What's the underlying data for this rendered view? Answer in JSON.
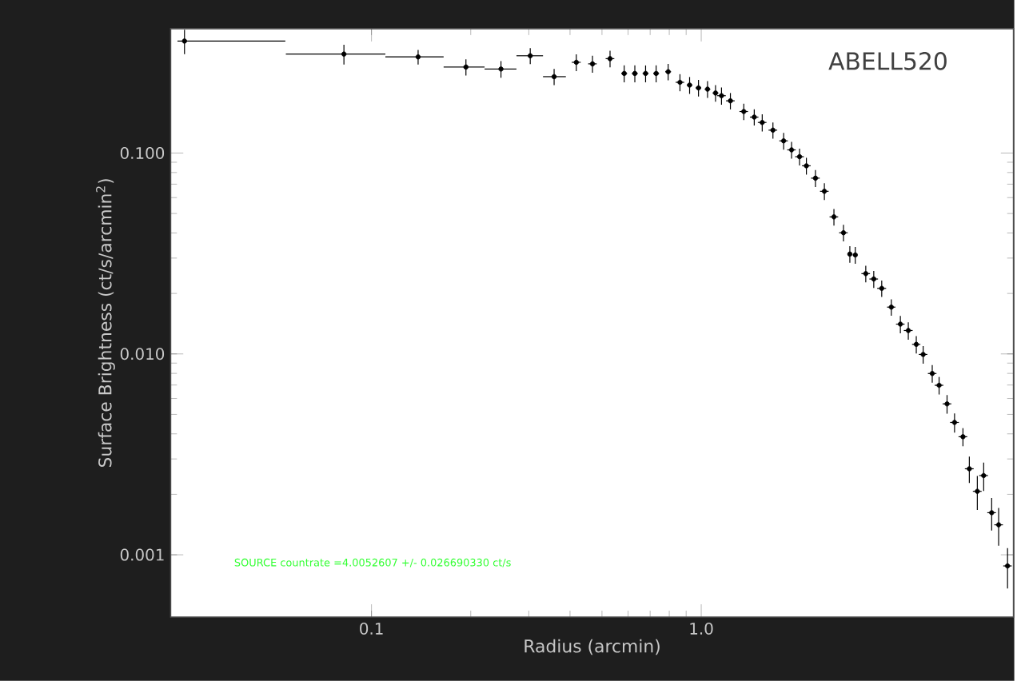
{
  "chart_data": {
    "type": "scatter",
    "log": "xy",
    "marker": "circle",
    "color": "#000000",
    "xlabel": "Radius (arcmin)",
    "ylabel": "Surface Brightness (ct/s/arcmin$^{2}$)",
    "xlim": [
      0.0246,
      8.85
    ],
    "ylim": [
      0.00049,
      0.416
    ],
    "xticks": [
      0.1,
      {
        "value": 1,
        "label": "1.0"
      }
    ],
    "yticks": [
      0.001,
      {
        "value": 0.01,
        "label": "0.010"
      },
      {
        "value": 0.1,
        "label": "0.100"
      }
    ],
    "annotations": [
      "ABELL520",
      "SOURCE countrate =4.0052607 +/- 0.026690330 ct/s"
    ],
    "x": [
      0.0271,
      0.0825,
      0.1385,
      0.1934,
      0.247,
      0.303,
      0.358,
      0.418,
      0.468,
      0.529,
      0.584,
      0.629,
      0.678,
      0.73,
      0.794,
      0.862,
      0.922,
      0.981,
      1.045,
      1.105,
      1.152,
      1.226,
      1.346,
      1.448,
      1.531,
      1.65,
      1.778,
      1.879,
      1.987,
      2.084,
      2.22,
      2.363,
      2.526,
      2.7,
      2.823,
      2.932,
      3.155,
      3.336,
      3.527,
      3.771,
      4.017,
      4.246,
      4.489,
      4.71,
      5.018,
      5.264,
      5.565,
      5.864,
      6.219,
      6.502,
      6.875,
      7.187,
      7.6,
      7.98,
      8.49
    ],
    "values": [
      0.361,
      0.311,
      0.301,
      0.268,
      0.262,
      0.305,
      0.24,
      0.283,
      0.278,
      0.295,
      0.249,
      0.249,
      0.249,
      0.249,
      0.254,
      0.225,
      0.218,
      0.211,
      0.208,
      0.199,
      0.193,
      0.182,
      0.161,
      0.151,
      0.142,
      0.13,
      0.115,
      0.1037,
      0.0959,
      0.0864,
      0.075,
      0.0645,
      0.0481,
      0.0401,
      0.0314,
      0.0311,
      0.0251,
      0.0236,
      0.0212,
      0.0171,
      0.01407,
      0.01308,
      0.01116,
      0.00994,
      0.00799,
      0.00698,
      0.00564,
      0.00456,
      0.00387,
      0.00268,
      0.00207,
      0.00248,
      0.00162,
      0.00141,
      0.00088
    ],
    "xerrors": [
      [
        0.0258,
        0.0548
      ],
      [
        0.055,
        0.1102
      ],
      [
        0.1102,
        0.1655
      ],
      [
        0.1655,
        0.2203
      ],
      [
        0.2203,
        0.2752
      ],
      [
        0.2752,
        0.3313
      ],
      [
        0.3313,
        0.3886
      ],
      0.013,
      0.014,
      0.016,
      0.012,
      0.013,
      0.014,
      0.015,
      0.016,
      0.026,
      0.018,
      0.019,
      0.02,
      0.022,
      0.035,
      0.037,
      0.04,
      0.043,
      0.046,
      0.05,
      0.053,
      0.056,
      0.06,
      0.063,
      0.067,
      0.071,
      0.076,
      0.081,
      0.04,
      0.04,
      0.095,
      0.1,
      0.11,
      0.11,
      0.12,
      0.13,
      0.13,
      0.14,
      0.15,
      0.16,
      0.17,
      0.18,
      0.19,
      0.2,
      0.21,
      0.22,
      0.23,
      0.24,
      0.25
    ],
    "errors": [
      0.05,
      0.035,
      0.025,
      0.025,
      0.025,
      0.028,
      0.022,
      0.027,
      0.027,
      0.028,
      0.024,
      0.024,
      0.024,
      0.024,
      0.024,
      0.022,
      0.021,
      0.02,
      0.02,
      0.019,
      0.019,
      0.017,
      0.015,
      0.014,
      0.014,
      0.012,
      0.011,
      0.01,
      0.0092,
      0.0083,
      0.0072,
      0.0062,
      0.0046,
      0.0038,
      0.003,
      0.003,
      0.0024,
      0.0023,
      0.002,
      0.0016,
      0.0014,
      0.0013,
      0.0011,
      0.001,
      0.0008,
      0.0007,
      0.0006,
      0.0005,
      0.0004,
      0.0004,
      0.0004,
      0.0004,
      0.0003,
      0.0003,
      0.0002
    ]
  }
}
